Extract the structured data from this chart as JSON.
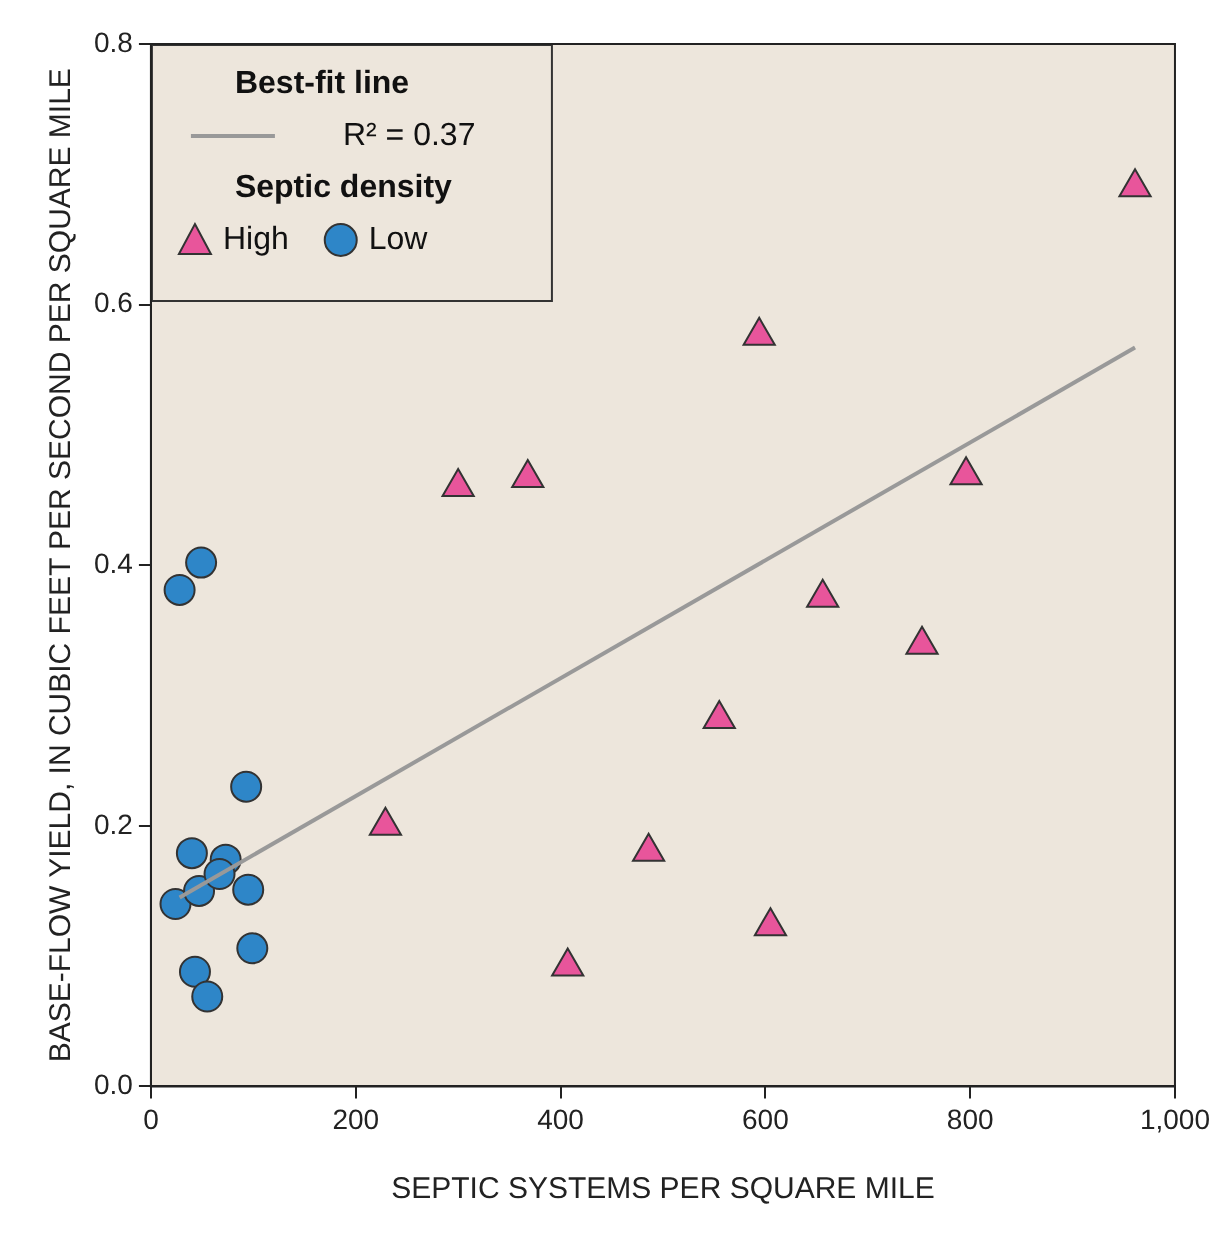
{
  "chart_data": {
    "type": "scatter",
    "xlabel": "SEPTIC SYSTEMS PER SQUARE MILE",
    "ylabel": "BASE-FLOW YIELD, IN CUBIC FEET PER SECOND PER SQUARE MILE",
    "legend_title": "Septic density",
    "annotations": [
      "Best-fit line"
    ],
    "legend": "top left",
    "grid": false,
    "xlim": [
      0,
      1000
    ],
    "xticks": [
      0,
      200,
      400,
      600,
      800,
      {
        "value": 1000,
        "label": "1,000"
      }
    ],
    "ylim": [
      0,
      0.8
    ],
    "yticks": [
      {
        "value": 0,
        "label": "0.0"
      },
      0.2,
      0.4,
      0.6,
      0.8
    ],
    "series": [
      {
        "name": "R² = 0.37",
        "type": "line",
        "color": "#999999",
        "marker": "none",
        "x": [
          28,
          961
        ],
        "values": [
          0.145,
          0.567
        ]
      },
      {
        "name": "High",
        "color": "#e8559b",
        "marker": "triangle",
        "x": [
          229,
          300,
          368,
          407,
          486,
          555,
          594,
          605,
          656,
          753,
          796,
          961
        ],
        "values": [
          0.2,
          0.46,
          0.467,
          0.092,
          0.18,
          0.282,
          0.576,
          0.123,
          0.375,
          0.339,
          0.469,
          0.69
        ]
      },
      {
        "name": "Low",
        "color": "#2e86c8",
        "marker": "circle",
        "x": [
          28,
          49,
          24,
          40,
          47,
          43,
          55,
          73,
          67,
          93,
          95,
          99
        ],
        "values": [
          0.381,
          0.402,
          0.14,
          0.179,
          0.15,
          0.088,
          0.069,
          0.174,
          0.163,
          0.23,
          0.151,
          0.106
        ]
      }
    ]
  }
}
